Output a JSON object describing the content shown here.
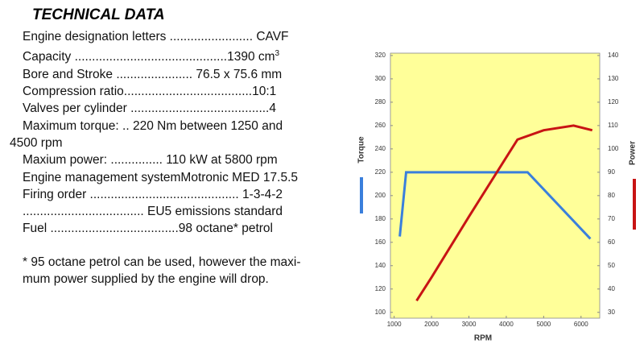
{
  "title": "TECHNICAL DATA",
  "specs": [
    "Engine designation letters ........................ CAVF",
    "Capacity ............................................1390 cm",
    "Bore and Stroke ...................... 76.5 x 75.6 mm",
    "Compression ratio.....................................10:1",
    "Valves per cylinder ........................................4",
    "Maximum torque: .. 220 Nm between 1250 and 4500 rpm",
    "Maxium power: ............... 110 kW at 5800 rpm",
    "Engine management systemMotronic MED 17.5.5",
    "Firing order ........................................... 1-3-4-2",
    "................................... EU5 emissions standard",
    "Fuel .....................................98 octane* petrol"
  ],
  "capacity_superscript": "3",
  "note": [
    "* 95 octane petrol can be used, however the maxi-",
    "mum power supplied by the engine will drop."
  ],
  "chart_data": {
    "type": "line",
    "x_label": "RPM",
    "y_label": "Torque",
    "y2_label": "Power",
    "xlim": [
      900,
      6500
    ],
    "xticks": [
      1000,
      2000,
      3000,
      4000,
      5000,
      6000
    ],
    "ylim": [
      95,
      322
    ],
    "yticks": [
      100,
      120,
      140,
      160,
      180,
      200,
      220,
      240,
      260,
      280,
      300,
      320
    ],
    "y2lim": [
      27.5,
      141
    ],
    "y2ticks": [
      30,
      40,
      50,
      60,
      70,
      80,
      90,
      100,
      110,
      120,
      130,
      140
    ],
    "background": "#ffff99",
    "grid": false,
    "series": [
      {
        "name": "Torque",
        "color": "#3a7fdc",
        "axis": "y",
        "x": [
          1150,
          1320,
          4570,
          6250
        ],
        "values": [
          165,
          220,
          220,
          163
        ]
      },
      {
        "name": "Power",
        "color": "#c81414",
        "axis": "y2",
        "x": [
          1600,
          2000,
          3000,
          4300,
          5000,
          5800,
          6300
        ],
        "values": [
          35,
          45,
          71,
          104,
          108,
          110,
          108
        ]
      }
    ]
  }
}
